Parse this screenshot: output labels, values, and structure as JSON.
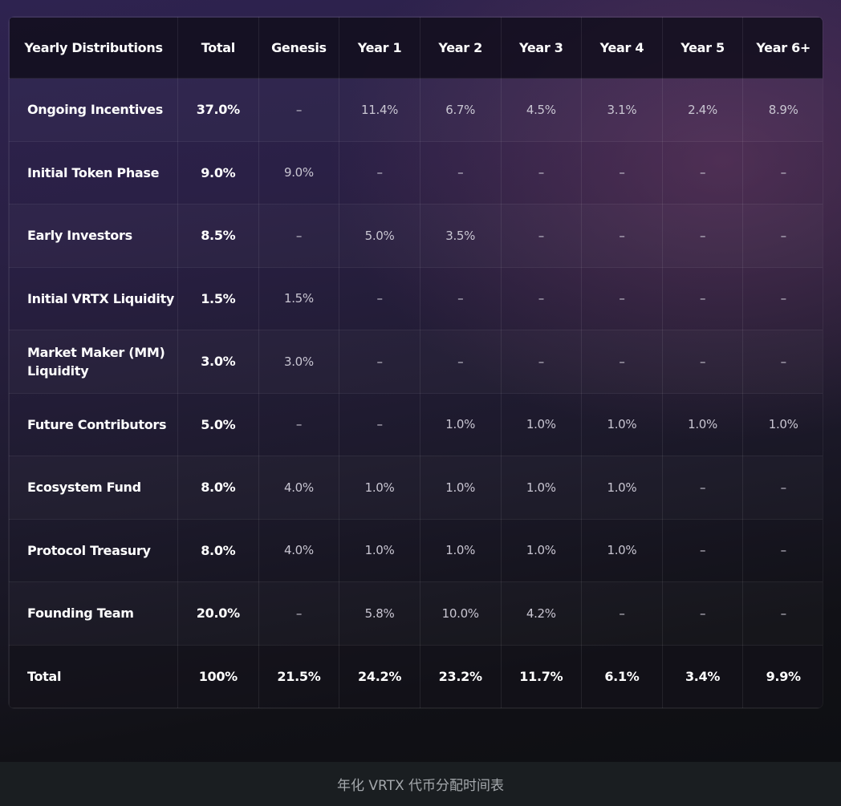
{
  "table": {
    "headers": [
      "Yearly Distributions",
      "Total",
      "Genesis",
      "Year 1",
      "Year 2",
      "Year 3",
      "Year 4",
      "Year 5",
      "Year 6+"
    ],
    "rows": [
      [
        "Ongoing Incentives",
        "37.0%",
        "–",
        "11.4%",
        "6.7%",
        "4.5%",
        "3.1%",
        "2.4%",
        "8.9%"
      ],
      [
        "Initial Token Phase",
        "9.0%",
        "9.0%",
        "–",
        "–",
        "–",
        "–",
        "–",
        "–"
      ],
      [
        "Early Investors",
        "8.5%",
        "–",
        "5.0%",
        "3.5%",
        "–",
        "–",
        "–",
        "–"
      ],
      [
        "Initial VRTX Liquidity",
        "1.5%",
        "1.5%",
        "–",
        "–",
        "–",
        "–",
        "–",
        "–"
      ],
      [
        "Market Maker (MM) Liquidity",
        "3.0%",
        "3.0%",
        "–",
        "–",
        "–",
        "–",
        "–",
        "–"
      ],
      [
        "Future Contributors",
        "5.0%",
        "–",
        "–",
        "1.0%",
        "1.0%",
        "1.0%",
        "1.0%",
        "1.0%"
      ],
      [
        "Ecosystem Fund",
        "8.0%",
        "4.0%",
        "1.0%",
        "1.0%",
        "1.0%",
        "1.0%",
        "–",
        "–"
      ],
      [
        "Protocol Treasury",
        "8.0%",
        "4.0%",
        "1.0%",
        "1.0%",
        "1.0%",
        "1.0%",
        "–",
        "–"
      ],
      [
        "Founding Team",
        "20.0%",
        "–",
        "5.8%",
        "10.0%",
        "4.2%",
        "–",
        "–",
        "–"
      ],
      [
        "Total",
        "100%",
        "21.5%",
        "24.2%",
        "23.2%",
        "11.7%",
        "6.1%",
        "3.4%",
        "9.9%"
      ]
    ]
  },
  "caption": "年化 VRTX 代币分配时间表"
}
